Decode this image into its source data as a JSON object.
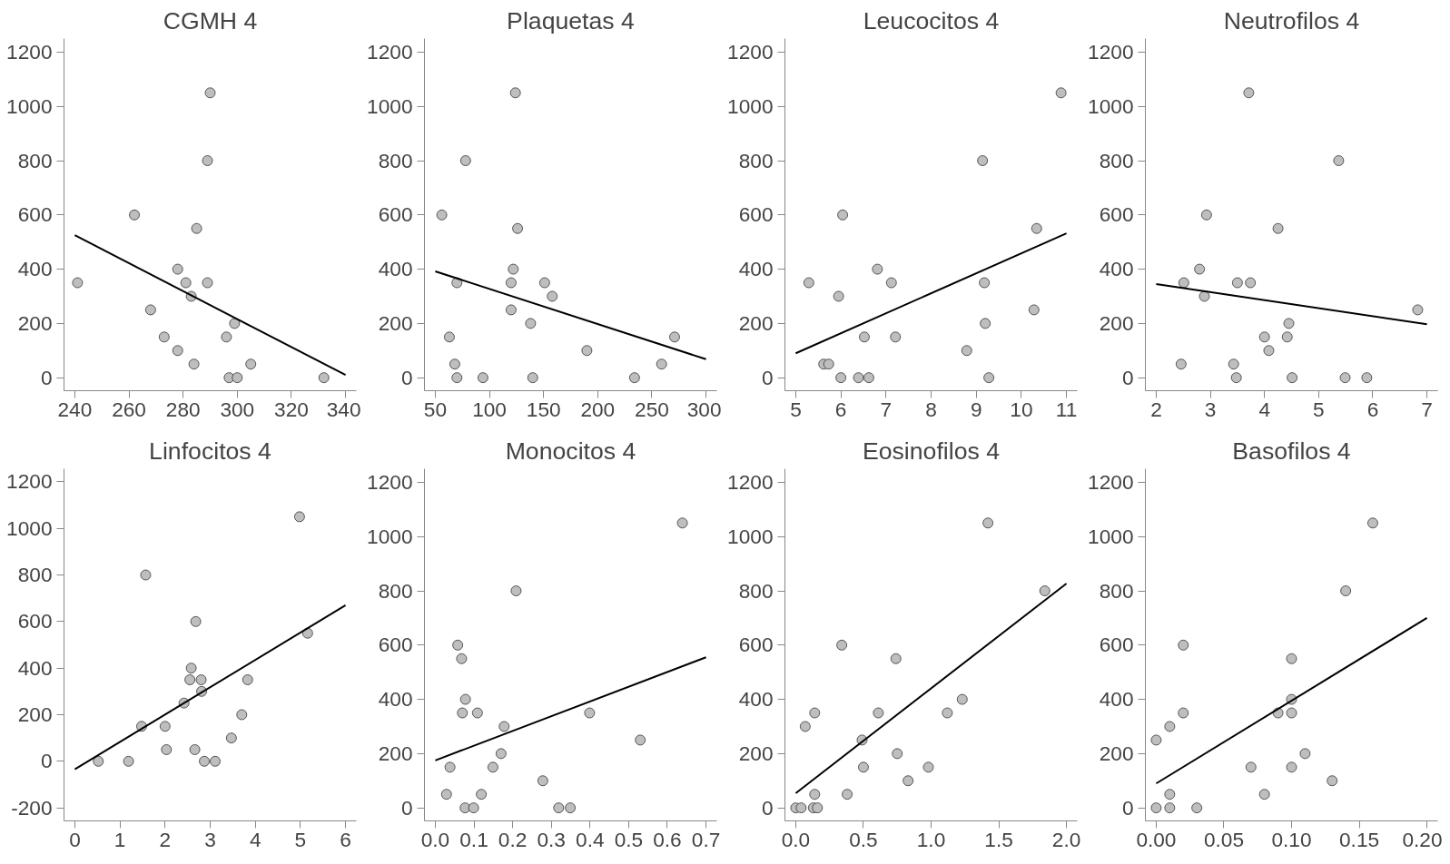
{
  "chart_data": [
    {
      "type": "scatter",
      "title": "CGMH 4",
      "grid": false,
      "xlim": [
        236,
        344
      ],
      "ylim": [
        -48,
        1250
      ],
      "xticks": [
        240,
        260,
        280,
        300,
        320,
        340
      ],
      "yticks": [
        0,
        200,
        400,
        600,
        800,
        1000,
        1200
      ],
      "series": [
        {
          "marker": "circle",
          "color": "#bebebe",
          "x": [
            241,
            262,
            268,
            273,
            278,
            278,
            281,
            283,
            284,
            285,
            289,
            289,
            290,
            296,
            297,
            299,
            300,
            305,
            332
          ],
          "values": [
            350,
            600,
            250,
            150,
            400,
            100,
            350,
            300,
            50,
            550,
            350,
            800,
            1050,
            150,
            0,
            200,
            0,
            50,
            0
          ]
        },
        {
          "type": "line",
          "color": "#000000",
          "x": [
            240,
            340
          ],
          "values": [
            525,
            10
          ]
        }
      ]
    },
    {
      "type": "scatter",
      "title": "Plaquetas 4",
      "grid": false,
      "xlim": [
        40,
        310
      ],
      "ylim": [
        -48,
        1250
      ],
      "xticks": [
        50,
        100,
        150,
        200,
        250,
        300
      ],
      "yticks": [
        0,
        200,
        400,
        600,
        800,
        1000,
        1200
      ],
      "series": [
        {
          "marker": "circle",
          "color": "#bebebe",
          "x": [
            56,
            63,
            68,
            70,
            70,
            78,
            94,
            120,
            120,
            122,
            124,
            126,
            138,
            140,
            151,
            158,
            190,
            234,
            259,
            271
          ],
          "values": [
            600,
            150,
            50,
            350,
            0,
            800,
            0,
            350,
            250,
            400,
            1050,
            550,
            200,
            0,
            350,
            300,
            100,
            0,
            50,
            150
          ]
        },
        {
          "type": "line",
          "color": "#000000",
          "x": [
            50,
            300
          ],
          "values": [
            392,
            68
          ]
        }
      ]
    },
    {
      "type": "scatter",
      "title": "Leucocitos 4",
      "grid": false,
      "xlim": [
        4.76,
        11.24
      ],
      "ylim": [
        -48,
        1250
      ],
      "xticks": [
        5,
        6,
        7,
        8,
        9,
        10,
        11
      ],
      "yticks": [
        0,
        200,
        400,
        600,
        800,
        1000,
        1200
      ],
      "series": [
        {
          "marker": "circle",
          "color": "#bebebe",
          "x": [
            5.29,
            5.62,
            5.73,
            5.95,
            6.0,
            6.04,
            6.39,
            6.52,
            6.62,
            6.81,
            7.12,
            7.21,
            8.79,
            9.14,
            9.18,
            9.2,
            9.28,
            10.28,
            10.34,
            10.88
          ],
          "values": [
            350,
            50,
            50,
            300,
            0,
            600,
            0,
            150,
            0,
            400,
            350,
            150,
            100,
            800,
            350,
            200,
            0,
            250,
            550,
            1050
          ]
        },
        {
          "type": "line",
          "color": "#000000",
          "x": [
            5,
            11
          ],
          "values": [
            90,
            532
          ]
        }
      ]
    },
    {
      "type": "scatter",
      "title": "Neutrofilos 4",
      "grid": false,
      "xlim": [
        1.8,
        7.2
      ],
      "ylim": [
        -48,
        1250
      ],
      "xticks": [
        2,
        3,
        4,
        5,
        6,
        7
      ],
      "yticks": [
        0,
        200,
        400,
        600,
        800,
        1000,
        1200
      ],
      "series": [
        {
          "marker": "circle",
          "color": "#bebebe",
          "x": [
            2.46,
            2.51,
            2.8,
            2.89,
            2.93,
            3.43,
            3.48,
            3.5,
            3.71,
            3.74,
            4.0,
            4.08,
            4.25,
            4.42,
            4.45,
            4.51,
            5.37,
            5.49,
            5.89,
            6.83
          ],
          "values": [
            50,
            350,
            400,
            300,
            600,
            50,
            0,
            350,
            1050,
            350,
            150,
            100,
            550,
            150,
            200,
            0,
            800,
            0,
            0,
            250
          ]
        },
        {
          "type": "line",
          "color": "#000000",
          "x": [
            2,
            7
          ],
          "values": [
            345,
            197
          ]
        }
      ]
    },
    {
      "type": "scatter",
      "title": "Linfocitos 4",
      "grid": false,
      "xlim": [
        -0.24,
        6.24
      ],
      "ylim": [
        -256,
        1256
      ],
      "xticks": [
        0,
        1,
        2,
        3,
        4,
        5,
        6
      ],
      "yticks": [
        -200,
        0,
        200,
        400,
        600,
        800,
        1000,
        1200
      ],
      "series": [
        {
          "marker": "circle",
          "color": "#bebebe",
          "x": [
            0.52,
            1.19,
            1.48,
            1.57,
            2.0,
            2.03,
            2.42,
            2.55,
            2.58,
            2.66,
            2.68,
            2.8,
            2.81,
            2.87,
            3.11,
            3.47,
            3.7,
            3.83,
            4.98,
            5.16
          ],
          "values": [
            0,
            0,
            150,
            800,
            150,
            50,
            250,
            350,
            400,
            50,
            600,
            350,
            300,
            0,
            0,
            100,
            200,
            350,
            1050,
            550
          ]
        },
        {
          "type": "line",
          "color": "#000000",
          "x": [
            0,
            6
          ],
          "values": [
            -34,
            670
          ]
        }
      ]
    },
    {
      "type": "scatter",
      "title": "Monocitos 4",
      "grid": false,
      "xlim": [
        -0.028,
        0.728
      ],
      "ylim": [
        -48,
        1250
      ],
      "xticks": [
        {
          "value": 0,
          "label": "0.0"
        },
        0.1,
        0.2,
        0.3,
        0.4,
        0.5,
        0.6,
        0.7
      ],
      "yticks": [
        0,
        200,
        400,
        600,
        800,
        1000,
        1200
      ],
      "series": [
        {
          "marker": "circle",
          "color": "#bebebe",
          "x": [
            0.029,
            0.038,
            0.058,
            0.068,
            0.07,
            0.077,
            0.078,
            0.099,
            0.109,
            0.119,
            0.149,
            0.17,
            0.178,
            0.209,
            0.278,
            0.319,
            0.349,
            0.399,
            0.53,
            0.639
          ],
          "values": [
            50,
            150,
            600,
            550,
            350,
            0,
            400,
            0,
            350,
            50,
            150,
            200,
            300,
            800,
            100,
            0,
            0,
            350,
            250,
            1050
          ]
        },
        {
          "type": "line",
          "color": "#000000",
          "x": [
            0,
            0.7
          ],
          "values": [
            175,
            555
          ]
        }
      ]
    },
    {
      "type": "scatter",
      "title": "Eosinofilos 4",
      "grid": false,
      "xlim": [
        -0.08,
        2.08
      ],
      "ylim": [
        -48,
        1250
      ],
      "xticks": [
        {
          "value": 0,
          "label": "0.0"
        },
        0.5,
        {
          "value": 1,
          "label": "1.0"
        },
        1.5,
        {
          "value": 2,
          "label": "2.0"
        }
      ],
      "yticks": [
        0,
        200,
        400,
        600,
        800,
        1000,
        1200
      ],
      "series": [
        {
          "marker": "circle",
          "color": "#bebebe",
          "x": [
            0,
            0.04,
            0.07,
            0.14,
            0.14,
            0.13,
            0.16,
            0.34,
            0.38,
            0.49,
            0.5,
            0.61,
            0.74,
            0.75,
            0.83,
            0.98,
            1.12,
            1.23,
            1.42,
            1.84
          ],
          "values": [
            0,
            0,
            300,
            350,
            50,
            0,
            0,
            600,
            50,
            250,
            150,
            350,
            550,
            200,
            100,
            150,
            350,
            400,
            1050,
            800
          ]
        },
        {
          "type": "line",
          "color": "#000000",
          "x": [
            0,
            2
          ],
          "values": [
            54,
            827
          ]
        }
      ]
    },
    {
      "type": "scatter",
      "title": "Basofilos 4",
      "grid": false,
      "xlim": [
        -0.008,
        0.208
      ],
      "ylim": [
        -48,
        1250
      ],
      "xticks": [
        {
          "value": 0,
          "label": "0.00"
        },
        0.05,
        {
          "value": 0.1,
          "label": "0.10"
        },
        0.15,
        {
          "value": 0.2,
          "label": "0.20"
        }
      ],
      "yticks": [
        0,
        200,
        400,
        600,
        800,
        1000,
        1200
      ],
      "series": [
        {
          "marker": "circle",
          "color": "#bebebe",
          "x": [
            0,
            0,
            0.01,
            0.01,
            0.01,
            0.02,
            0.02,
            0.03,
            0.07,
            0.08,
            0.09,
            0.1,
            0.1,
            0.1,
            0.1,
            0.11,
            0.13,
            0.14,
            0.16
          ],
          "values": [
            250,
            0,
            300,
            50,
            0,
            600,
            350,
            0,
            150,
            50,
            350,
            550,
            400,
            350,
            150,
            200,
            100,
            800,
            1050
          ]
        },
        {
          "type": "line",
          "color": "#000000",
          "x": [
            0,
            0.2
          ],
          "values": [
            90,
            700
          ]
        }
      ]
    }
  ]
}
